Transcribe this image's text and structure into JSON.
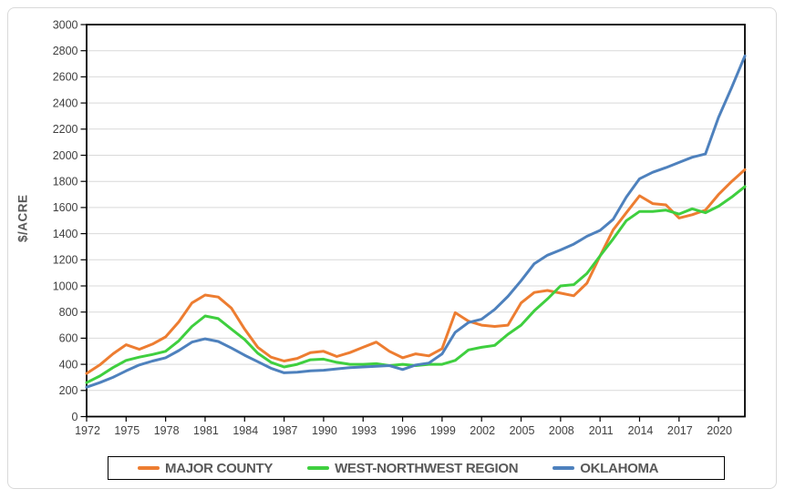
{
  "chart_data": {
    "type": "line",
    "title": "",
    "xlabel": "",
    "ylabel": "$/ACRE",
    "ylim": [
      0,
      3000
    ],
    "ytick_step": 200,
    "y_ticks": [
      0,
      200,
      400,
      600,
      800,
      1000,
      1200,
      1400,
      1600,
      1800,
      2000,
      2200,
      2400,
      2600,
      2800,
      3000
    ],
    "x_range": [
      1972,
      2022
    ],
    "x_ticks": [
      1972,
      1975,
      1978,
      1981,
      1984,
      1987,
      1990,
      1993,
      1996,
      1999,
      2002,
      2005,
      2008,
      2011,
      2014,
      2017,
      2020
    ],
    "grid": true,
    "legend_position": "bottom",
    "colors": {
      "grid": "#d9d9d9",
      "axis": "#000000",
      "tick_label": "#404040",
      "legend_text": "#595959"
    },
    "series": [
      {
        "name": "MAJOR COUNTY",
        "color": "#ED7D31",
        "values": [
          330,
          395,
          480,
          550,
          515,
          555,
          610,
          725,
          870,
          930,
          915,
          830,
          670,
          530,
          455,
          425,
          445,
          490,
          500,
          460,
          490,
          530,
          570,
          500,
          450,
          480,
          465,
          520,
          795,
          730,
          700,
          690,
          700,
          870,
          950,
          965,
          945,
          925,
          1020,
          1230,
          1430,
          1560,
          1690,
          1630,
          1620,
          1520,
          1545,
          1580,
          1700,
          1800,
          1890
        ]
      },
      {
        "name": "WEST-NORTHWEST REGION",
        "color": "#3FCF3F",
        "values": [
          260,
          310,
          375,
          430,
          455,
          475,
          500,
          580,
          690,
          770,
          750,
          670,
          590,
          485,
          415,
          380,
          400,
          435,
          440,
          415,
          400,
          400,
          405,
          390,
          400,
          390,
          400,
          400,
          430,
          510,
          530,
          545,
          630,
          700,
          810,
          900,
          1000,
          1010,
          1095,
          1230,
          1360,
          1500,
          1570,
          1570,
          1580,
          1550,
          1590,
          1560,
          1610,
          1680,
          1760
        ]
      },
      {
        "name": "OKLAHOMA",
        "color": "#4E81BD",
        "values": [
          225,
          260,
          300,
          350,
          395,
          425,
          450,
          505,
          570,
          595,
          575,
          525,
          470,
          420,
          370,
          335,
          340,
          350,
          355,
          365,
          375,
          380,
          385,
          390,
          360,
          395,
          410,
          480,
          645,
          720,
          745,
          820,
          920,
          1040,
          1170,
          1235,
          1275,
          1320,
          1380,
          1425,
          1510,
          1680,
          1820,
          1870,
          1905,
          1945,
          1985,
          2010,
          2290,
          2520,
          2760
        ]
      }
    ]
  }
}
